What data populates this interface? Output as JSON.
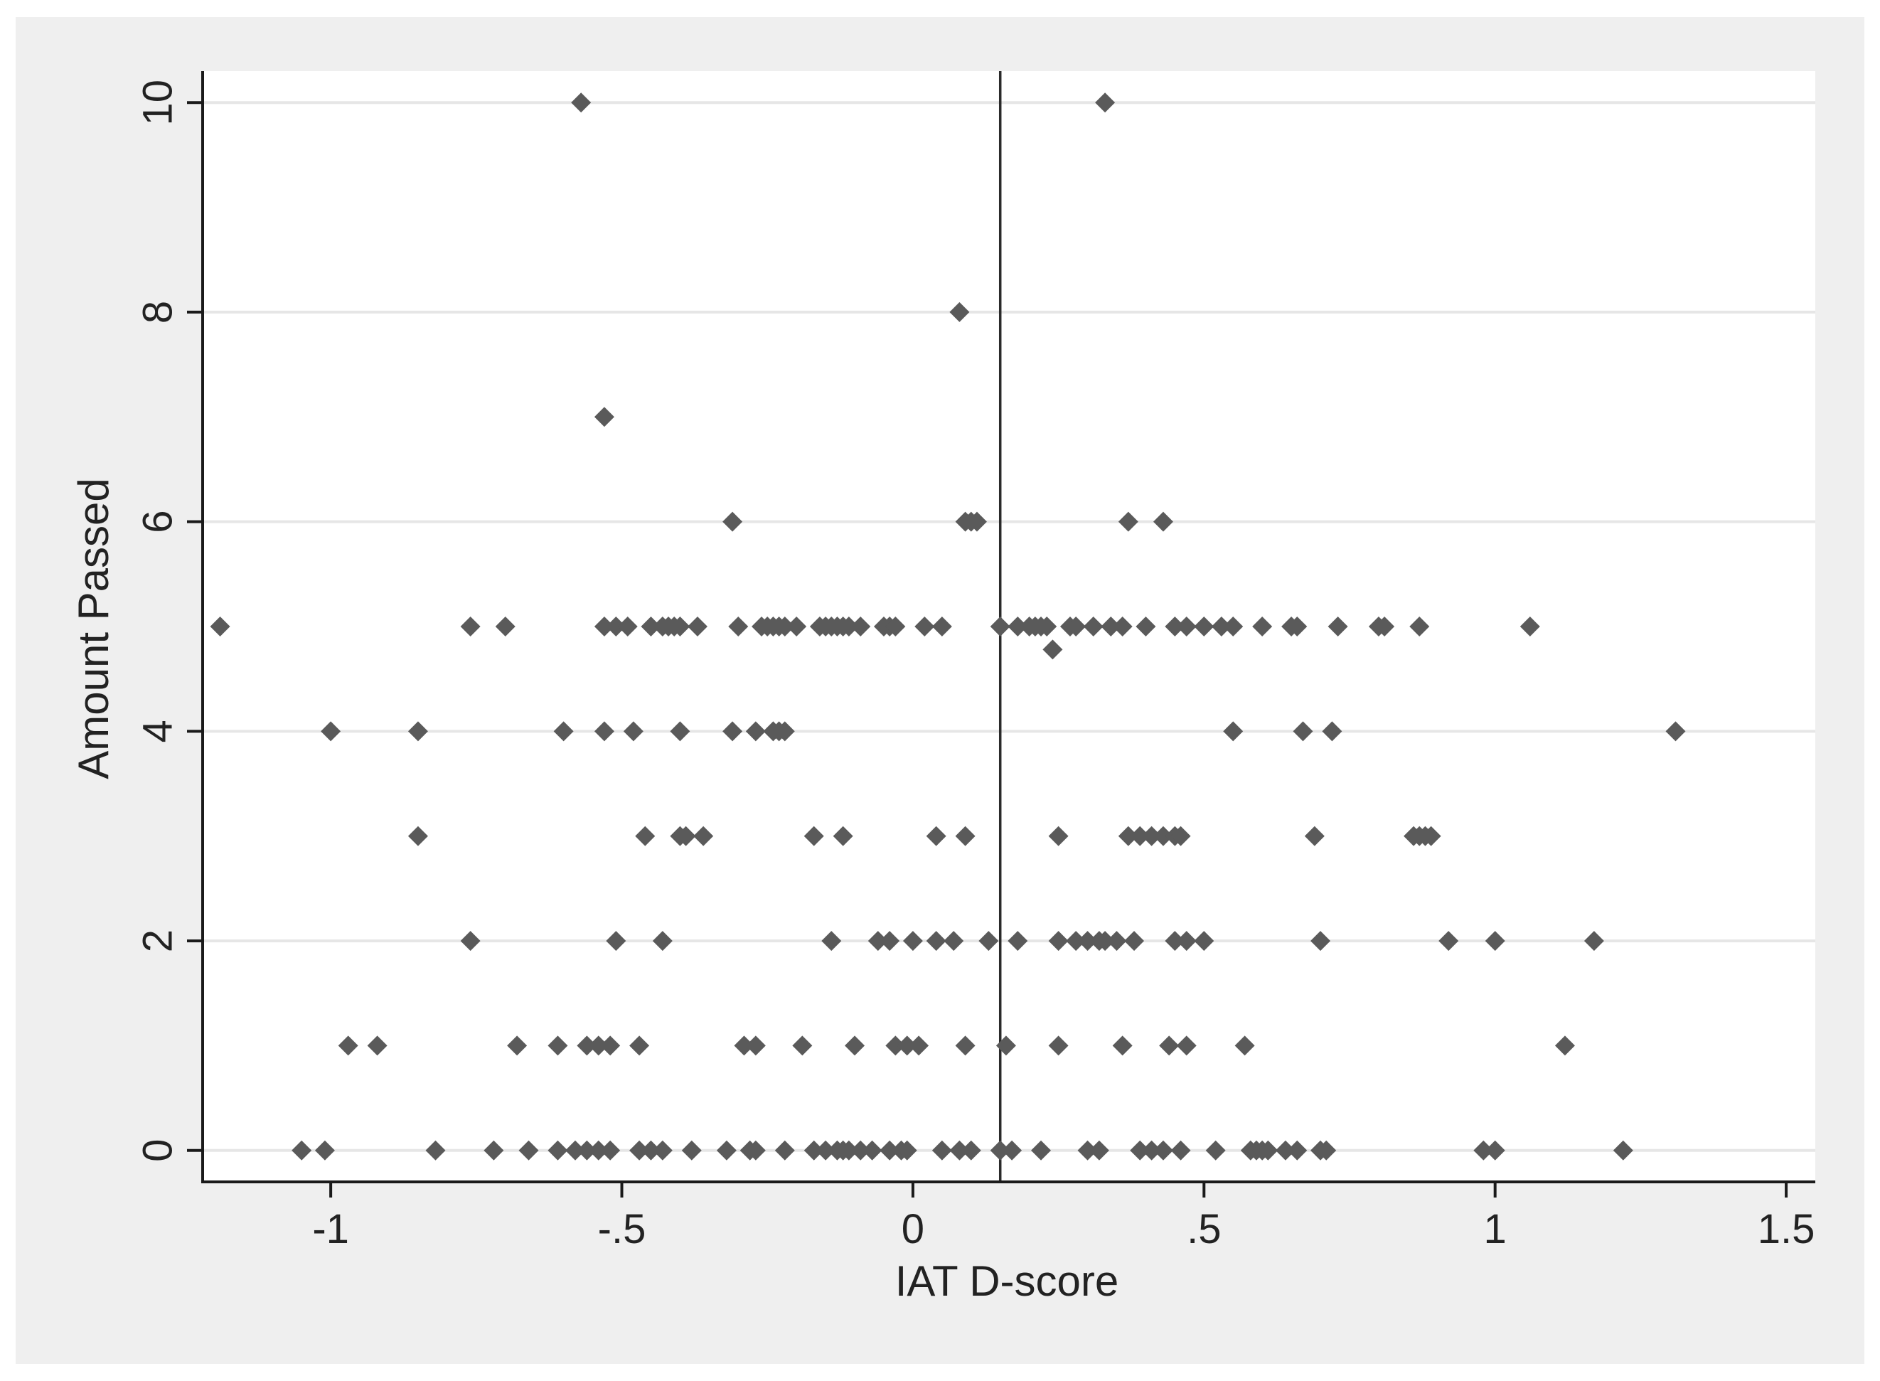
{
  "chart_data": {
    "type": "scatter",
    "title": "",
    "xlabel": "IAT D-score",
    "ylabel": "Amount Passed",
    "xlim": [
      -1.22,
      1.55
    ],
    "ylim": [
      -0.3,
      10.3
    ],
    "x_ticks": [
      -1,
      -0.5,
      0,
      0.5,
      1,
      1.5
    ],
    "x_tick_labels": [
      "-1",
      "-.5",
      "0",
      ".5",
      "1",
      "1.5"
    ],
    "y_ticks": [
      0,
      2,
      4,
      6,
      8,
      10
    ],
    "y_tick_labels": [
      "0",
      "2",
      "4",
      "6",
      "8",
      "10"
    ],
    "grid": "horizontal",
    "reference_line_x": 0.15,
    "colors": {
      "outer_background": "#efefef",
      "plot_background": "#ffffff",
      "grid": "#e6e6e6",
      "marker": "#5a5a5a",
      "axis": "#1a1a1a"
    },
    "marker_shape": "diamond",
    "series": [
      {
        "points": [
          [
            -0.57,
            10
          ],
          [
            0.33,
            10
          ],
          [
            0.08,
            8
          ],
          [
            -0.53,
            7
          ],
          [
            -0.31,
            6
          ],
          [
            0.09,
            6
          ],
          [
            0.1,
            6
          ],
          [
            0.11,
            6
          ],
          [
            0.37,
            6
          ],
          [
            0.43,
            6
          ],
          [
            -1.19,
            5
          ],
          [
            -0.76,
            5
          ],
          [
            -0.7,
            5
          ],
          [
            -0.53,
            5
          ],
          [
            -0.51,
            5
          ],
          [
            -0.49,
            5
          ],
          [
            -0.45,
            5
          ],
          [
            -0.43,
            5
          ],
          [
            -0.42,
            5
          ],
          [
            -0.41,
            5
          ],
          [
            -0.4,
            5
          ],
          [
            -0.37,
            5
          ],
          [
            -0.3,
            5
          ],
          [
            -0.26,
            5
          ],
          [
            -0.25,
            5
          ],
          [
            -0.24,
            5
          ],
          [
            -0.23,
            5
          ],
          [
            -0.22,
            5
          ],
          [
            -0.2,
            5
          ],
          [
            -0.16,
            5
          ],
          [
            -0.15,
            5
          ],
          [
            -0.14,
            5
          ],
          [
            -0.13,
            5
          ],
          [
            -0.12,
            5
          ],
          [
            -0.11,
            5
          ],
          [
            -0.09,
            5
          ],
          [
            -0.05,
            5
          ],
          [
            -0.04,
            5
          ],
          [
            -0.03,
            5
          ],
          [
            0.02,
            5
          ],
          [
            0.05,
            5
          ],
          [
            0.15,
            5
          ],
          [
            0.18,
            5
          ],
          [
            0.2,
            5
          ],
          [
            0.21,
            5
          ],
          [
            0.22,
            5
          ],
          [
            0.23,
            5
          ],
          [
            0.27,
            5
          ],
          [
            0.28,
            5
          ],
          [
            0.31,
            5
          ],
          [
            0.34,
            5
          ],
          [
            0.36,
            5
          ],
          [
            0.4,
            5
          ],
          [
            0.45,
            5
          ],
          [
            0.47,
            5
          ],
          [
            0.5,
            5
          ],
          [
            0.53,
            5
          ],
          [
            0.55,
            5
          ],
          [
            0.6,
            5
          ],
          [
            0.65,
            5
          ],
          [
            0.66,
            5
          ],
          [
            0.73,
            5
          ],
          [
            0.8,
            5
          ],
          [
            0.81,
            5
          ],
          [
            0.87,
            5
          ],
          [
            1.06,
            5
          ],
          [
            0.24,
            4.78
          ],
          [
            -1.0,
            4
          ],
          [
            -0.85,
            4
          ],
          [
            -0.6,
            4
          ],
          [
            -0.53,
            4
          ],
          [
            -0.48,
            4
          ],
          [
            -0.4,
            4
          ],
          [
            -0.31,
            4
          ],
          [
            -0.27,
            4
          ],
          [
            -0.24,
            4
          ],
          [
            -0.23,
            4
          ],
          [
            -0.22,
            4
          ],
          [
            0.55,
            4
          ],
          [
            0.67,
            4
          ],
          [
            0.72,
            4
          ],
          [
            1.31,
            4
          ],
          [
            -0.85,
            3
          ],
          [
            -0.46,
            3
          ],
          [
            -0.4,
            3
          ],
          [
            -0.39,
            3
          ],
          [
            -0.36,
            3
          ],
          [
            -0.17,
            3
          ],
          [
            -0.12,
            3
          ],
          [
            0.04,
            3
          ],
          [
            0.09,
            3
          ],
          [
            0.25,
            3
          ],
          [
            0.37,
            3
          ],
          [
            0.39,
            3
          ],
          [
            0.41,
            3
          ],
          [
            0.43,
            3
          ],
          [
            0.45,
            3
          ],
          [
            0.46,
            3
          ],
          [
            0.69,
            3
          ],
          [
            0.86,
            3
          ],
          [
            0.87,
            3
          ],
          [
            0.88,
            3
          ],
          [
            0.89,
            3
          ],
          [
            -0.76,
            2
          ],
          [
            -0.51,
            2
          ],
          [
            -0.43,
            2
          ],
          [
            -0.14,
            2
          ],
          [
            -0.06,
            2
          ],
          [
            -0.04,
            2
          ],
          [
            0.0,
            2
          ],
          [
            0.04,
            2
          ],
          [
            0.07,
            2
          ],
          [
            0.13,
            2
          ],
          [
            0.18,
            2
          ],
          [
            0.25,
            2
          ],
          [
            0.28,
            2
          ],
          [
            0.3,
            2
          ],
          [
            0.32,
            2
          ],
          [
            0.33,
            2
          ],
          [
            0.35,
            2
          ],
          [
            0.38,
            2
          ],
          [
            0.45,
            2
          ],
          [
            0.47,
            2
          ],
          [
            0.5,
            2
          ],
          [
            0.7,
            2
          ],
          [
            0.92,
            2
          ],
          [
            1.0,
            2
          ],
          [
            1.17,
            2
          ],
          [
            -0.97,
            1
          ],
          [
            -0.92,
            1
          ],
          [
            -0.68,
            1
          ],
          [
            -0.61,
            1
          ],
          [
            -0.56,
            1
          ],
          [
            -0.54,
            1
          ],
          [
            -0.52,
            1
          ],
          [
            -0.47,
            1
          ],
          [
            -0.29,
            1
          ],
          [
            -0.27,
            1
          ],
          [
            -0.19,
            1
          ],
          [
            -0.1,
            1
          ],
          [
            -0.03,
            1
          ],
          [
            -0.01,
            1
          ],
          [
            0.01,
            1
          ],
          [
            0.09,
            1
          ],
          [
            0.16,
            1
          ],
          [
            0.25,
            1
          ],
          [
            0.36,
            1
          ],
          [
            0.44,
            1
          ],
          [
            0.47,
            1
          ],
          [
            0.57,
            1
          ],
          [
            1.12,
            1
          ],
          [
            -1.05,
            0
          ],
          [
            -1.01,
            0
          ],
          [
            -0.82,
            0
          ],
          [
            -0.72,
            0
          ],
          [
            -0.66,
            0
          ],
          [
            -0.61,
            0
          ],
          [
            -0.58,
            0
          ],
          [
            -0.56,
            0
          ],
          [
            -0.54,
            0
          ],
          [
            -0.52,
            0
          ],
          [
            -0.47,
            0
          ],
          [
            -0.45,
            0
          ],
          [
            -0.43,
            0
          ],
          [
            -0.38,
            0
          ],
          [
            -0.32,
            0
          ],
          [
            -0.28,
            0
          ],
          [
            -0.27,
            0
          ],
          [
            -0.22,
            0
          ],
          [
            -0.17,
            0
          ],
          [
            -0.15,
            0
          ],
          [
            -0.13,
            0
          ],
          [
            -0.12,
            0
          ],
          [
            -0.11,
            0
          ],
          [
            -0.09,
            0
          ],
          [
            -0.07,
            0
          ],
          [
            -0.04,
            0
          ],
          [
            -0.02,
            0
          ],
          [
            -0.01,
            0
          ],
          [
            0.05,
            0
          ],
          [
            0.08,
            0
          ],
          [
            0.1,
            0
          ],
          [
            0.15,
            0
          ],
          [
            0.17,
            0
          ],
          [
            0.22,
            0
          ],
          [
            0.3,
            0
          ],
          [
            0.32,
            0
          ],
          [
            0.39,
            0
          ],
          [
            0.41,
            0
          ],
          [
            0.43,
            0
          ],
          [
            0.46,
            0
          ],
          [
            0.52,
            0
          ],
          [
            0.58,
            0
          ],
          [
            0.59,
            0
          ],
          [
            0.6,
            0
          ],
          [
            0.61,
            0
          ],
          [
            0.64,
            0
          ],
          [
            0.66,
            0
          ],
          [
            0.7,
            0
          ],
          [
            0.71,
            0
          ],
          [
            0.98,
            0
          ],
          [
            1.0,
            0
          ],
          [
            1.22,
            0
          ]
        ]
      }
    ]
  }
}
